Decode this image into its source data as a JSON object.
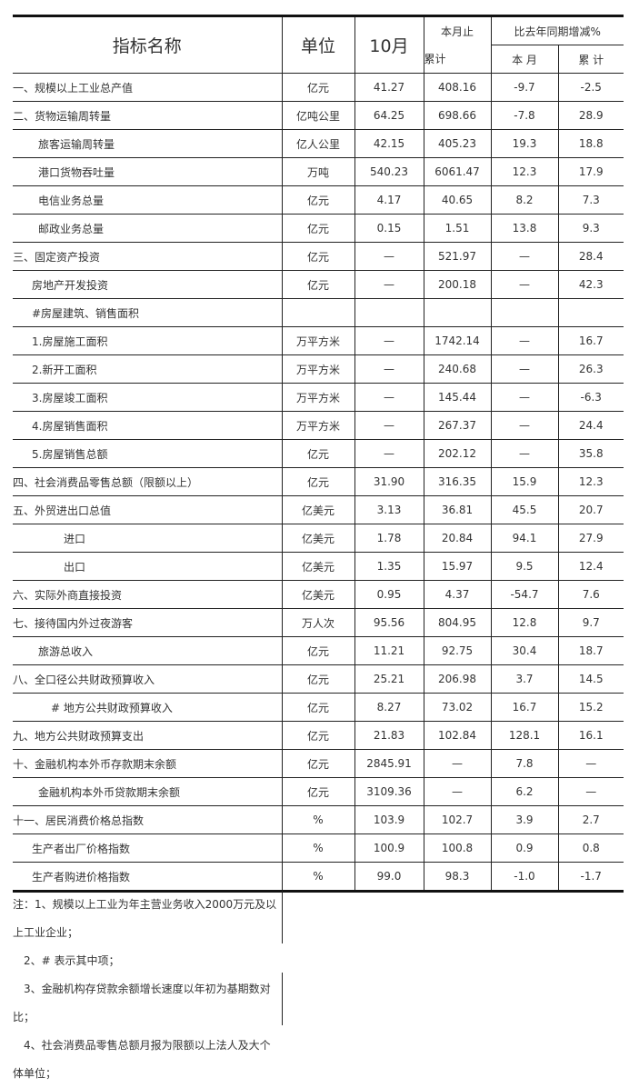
{
  "header": {
    "name": "指标名称",
    "unit": "单位",
    "month": "10月",
    "cumulative": "本月止累计",
    "cumulative_l1": "本月止",
    "cumulative_l2": "累计",
    "yoy": "比去年同期增减%",
    "yoy_month": "本 月",
    "yoy_cum": "累 计"
  },
  "rows": [
    {
      "name": "一、规模以上工业总产值",
      "unit": "亿元",
      "month": "41.27",
      "cum": "408.16",
      "ym": "-9.7",
      "yc": "-2.5",
      "indent": 0
    },
    {
      "name": "二、货物运输周转量",
      "unit": "亿吨公里",
      "month": "64.25",
      "cum": "698.66",
      "ym": "-7.8",
      "yc": "28.9",
      "indent": 0
    },
    {
      "name": "旅客运输周转量",
      "unit": "亿人公里",
      "month": "42.15",
      "cum": "405.23",
      "ym": "19.3",
      "yc": "18.8",
      "indent": 28
    },
    {
      "name": "港口货物吞吐量",
      "unit": "万吨",
      "month": "540.23",
      "cum": "6061.47",
      "ym": "12.3",
      "yc": "17.9",
      "indent": 28
    },
    {
      "name": "电信业务总量",
      "unit": "亿元",
      "month": "4.17",
      "cum": "40.65",
      "ym": "8.2",
      "yc": "7.3",
      "indent": 28
    },
    {
      "name": "邮政业务总量",
      "unit": "亿元",
      "month": "0.15",
      "cum": "1.51",
      "ym": "13.8",
      "yc": "9.3",
      "indent": 28
    },
    {
      "name": "三、固定资产投资",
      "unit": "亿元",
      "month": "—",
      "cum": "521.97",
      "ym": "—",
      "yc": "28.4",
      "indent": 0
    },
    {
      "name": "房地产开发投资",
      "unit": "亿元",
      "month": "—",
      "cum": "200.18",
      "ym": "—",
      "yc": "42.3",
      "indent": 21
    },
    {
      "name": "#房屋建筑、销售面积",
      "unit": "",
      "month": "",
      "cum": "",
      "ym": "",
      "yc": "",
      "indent": 21
    },
    {
      "name": "1.房屋施工面积",
      "unit": "万平方米",
      "month": "—",
      "cum": "1742.14",
      "ym": "—",
      "yc": "16.7",
      "indent": 21
    },
    {
      "name": "2.新开工面积",
      "unit": "万平方米",
      "month": "—",
      "cum": "240.68",
      "ym": "—",
      "yc": "26.3",
      "indent": 21
    },
    {
      "name": "3.房屋竣工面积",
      "unit": "万平方米",
      "month": "—",
      "cum": "145.44",
      "ym": "—",
      "yc": "-6.3",
      "indent": 21
    },
    {
      "name": "4.房屋销售面积",
      "unit": "万平方米",
      "month": "—",
      "cum": "267.37",
      "ym": "—",
      "yc": "24.4",
      "indent": 21
    },
    {
      "name": "5.房屋销售总额",
      "unit": "亿元",
      "month": "—",
      "cum": "202.12",
      "ym": "—",
      "yc": "35.8",
      "indent": 21
    },
    {
      "name": "四、社会消费品零售总额（限额以上）",
      "unit": "亿元",
      "month": "31.90",
      "cum": "316.35",
      "ym": "15.9",
      "yc": "12.3",
      "indent": 0
    },
    {
      "name": "五、外贸进出口总值",
      "unit": "亿美元",
      "month": "3.13",
      "cum": "36.81",
      "ym": "45.5",
      "yc": "20.7",
      "indent": 0
    },
    {
      "name": "进口",
      "unit": "亿美元",
      "month": "1.78",
      "cum": "20.84",
      "ym": "94.1",
      "yc": "27.9",
      "indent": 56
    },
    {
      "name": "出口",
      "unit": "亿美元",
      "month": "1.35",
      "cum": "15.97",
      "ym": "9.5",
      "yc": "12.4",
      "indent": 56
    },
    {
      "name": "六、实际外商直接投资",
      "unit": "亿美元",
      "month": "0.95",
      "cum": "4.37",
      "ym": "-54.7",
      "yc": "7.6",
      "indent": 0
    },
    {
      "name": "七、接待国内外过夜游客",
      "unit": "万人次",
      "month": "95.56",
      "cum": "804.95",
      "ym": "12.8",
      "yc": "9.7",
      "indent": 0
    },
    {
      "name": "旅游总收入",
      "unit": "亿元",
      "month": "11.21",
      "cum": "92.75",
      "ym": "30.4",
      "yc": "18.7",
      "indent": 28
    },
    {
      "name": "八、全口径公共财政预算收入",
      "unit": "亿元",
      "month": "25.21",
      "cum": "206.98",
      "ym": "3.7",
      "yc": "14.5",
      "indent": 0
    },
    {
      "name": "# 地方公共财政预算收入",
      "unit": "亿元",
      "month": "8.27",
      "cum": "73.02",
      "ym": "16.7",
      "yc": "15.2",
      "indent": 42
    },
    {
      "name": "九、地方公共财政预算支出",
      "unit": "亿元",
      "month": "21.83",
      "cum": "102.84",
      "ym": "128.1",
      "yc": "16.1",
      "indent": 0
    },
    {
      "name": "十、金融机构本外币存款期末余额",
      "unit": "亿元",
      "month": "2845.91",
      "cum": "—",
      "ym": "7.8",
      "yc": "—",
      "indent": 0
    },
    {
      "name": "金融机构本外币贷款期末余额",
      "unit": "亿元",
      "month": "3109.36",
      "cum": "—",
      "ym": "6.2",
      "yc": "—",
      "indent": 28
    },
    {
      "name": "十一、居民消费价格总指数",
      "unit": "%",
      "month": "103.9",
      "cum": "102.7",
      "ym": "3.9",
      "yc": "2.7",
      "indent": 0
    },
    {
      "name": "生产者出厂价格指数",
      "unit": "%",
      "month": "100.9",
      "cum": "100.8",
      "ym": "0.9",
      "yc": "0.8",
      "indent": 21
    },
    {
      "name": "生产者购进价格指数",
      "unit": "%",
      "month": "99.0",
      "cum": "98.3",
      "ym": "-1.0",
      "yc": "-1.7",
      "indent": 21
    }
  ],
  "notes": [
    "注：1、规模以上工业为年主营业务收入2000万元及以",
    "上工业企业；",
    "　2、# 表示其中项；",
    "　3、金融机构存贷款余额增长速度以年初为基期数对",
    "比；",
    "　4、社会消费品零售总额月报为限额以上法人及大个",
    "体单位；"
  ]
}
